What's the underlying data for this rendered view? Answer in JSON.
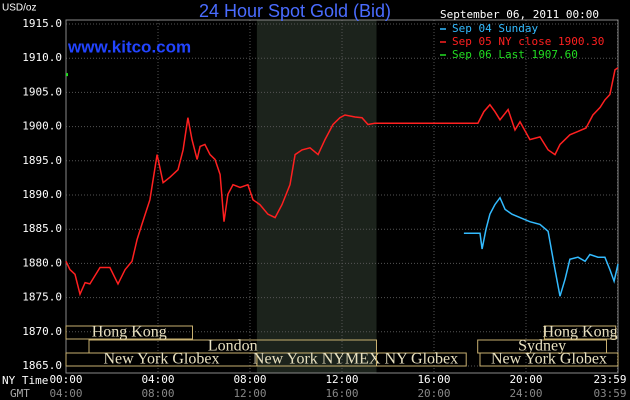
{
  "chart_data": {
    "type": "line",
    "title": "24 Hour Spot Gold (Bid)",
    "subtitle": "September 06, 2011 00:00",
    "y_label": "USD/oz",
    "watermark": "www.kitco.com",
    "x_row_labels": [
      "NY Time",
      "GMT"
    ],
    "xlim": [
      0,
      24
    ],
    "ylim": [
      1865,
      1915
    ],
    "xticks": [
      {
        "value": 0,
        "label": "00:00"
      },
      {
        "value": 4,
        "label": "04:00"
      },
      {
        "value": 8,
        "label": "08:00"
      },
      {
        "value": 12,
        "label": "12:00"
      },
      {
        "value": 16,
        "label": "16:00"
      },
      {
        "value": 20,
        "label": "20:00"
      },
      {
        "value": 23.98,
        "label": "23:59"
      }
    ],
    "gmt_labels": [
      "04:00",
      "08:00",
      "12:00",
      "16:00",
      "20:00",
      "24:00",
      "03:59"
    ],
    "yticks": [
      {
        "value": 1865,
        "label": "1865.0"
      },
      {
        "value": 1870,
        "label": "1870.0"
      },
      {
        "value": 1875,
        "label": "1875.0"
      },
      {
        "value": 1880,
        "label": "1880.0"
      },
      {
        "value": 1885,
        "label": "1885.0"
      },
      {
        "value": 1890,
        "label": "1890.0"
      },
      {
        "value": 1895,
        "label": "1895.0"
      },
      {
        "value": 1900,
        "label": "1900.0"
      },
      {
        "value": 1905,
        "label": "1905.0"
      },
      {
        "value": 1910,
        "label": "1910.0"
      },
      {
        "value": 1915,
        "label": "1915.0"
      }
    ],
    "grid": true,
    "series": [
      {
        "name": "Sep 04 Sunday",
        "color": "#33bbff",
        "x": [
          17.3,
          18.0,
          18.09,
          18.26,
          18.43,
          18.65,
          18.87,
          19.09,
          19.39,
          19.74,
          20.17,
          20.61,
          20.96,
          21.26,
          21.48,
          21.7,
          21.91,
          22.26,
          22.57,
          22.78,
          23.13,
          23.43,
          23.65,
          23.83,
          24.0
        ],
        "values": [
          1884.4,
          1884.4,
          1882.1,
          1885.0,
          1887.2,
          1888.6,
          1889.6,
          1887.9,
          1887.2,
          1886.7,
          1886.1,
          1885.7,
          1884.7,
          1879.1,
          1875.2,
          1877.7,
          1880.6,
          1880.9,
          1880.3,
          1881.3,
          1880.9,
          1880.9,
          1879.1,
          1877.4,
          1879.9
        ]
      },
      {
        "name": "Sep 05 NY close 1900.30",
        "color": "#ff2020",
        "x": [
          0.0,
          0.17,
          0.39,
          0.61,
          0.83,
          1.04,
          1.48,
          1.91,
          2.26,
          2.57,
          2.87,
          3.09,
          3.3,
          3.65,
          3.96,
          4.22,
          4.52,
          4.87,
          5.09,
          5.3,
          5.48,
          5.7,
          5.83,
          6.04,
          6.26,
          6.48,
          6.7,
          6.87,
          7.04,
          7.26,
          7.57,
          7.91,
          8.13,
          8.43,
          8.78,
          9.09,
          9.39,
          9.74,
          9.96,
          10.26,
          10.61,
          10.96,
          11.26,
          11.61,
          11.91,
          12.13,
          12.57,
          12.87,
          13.13,
          13.43,
          17.91,
          18.17,
          18.43,
          18.65,
          18.87,
          19.22,
          19.52,
          19.74,
          20.17,
          20.61,
          20.96,
          21.26,
          21.48,
          21.91,
          22.26,
          22.61,
          22.91,
          23.22,
          23.43,
          23.65,
          23.87,
          24.0
        ],
        "values": [
          1880.3,
          1879.1,
          1878.4,
          1875.5,
          1877.2,
          1877.0,
          1879.4,
          1879.4,
          1877.0,
          1879.1,
          1880.3,
          1883.5,
          1885.7,
          1889.3,
          1895.9,
          1891.8,
          1892.6,
          1893.7,
          1896.6,
          1901.3,
          1898.1,
          1895.2,
          1897.1,
          1897.4,
          1895.9,
          1895.2,
          1893.0,
          1886.1,
          1890.1,
          1891.5,
          1891.1,
          1891.5,
          1889.3,
          1888.6,
          1887.2,
          1886.7,
          1888.6,
          1891.5,
          1895.9,
          1896.6,
          1896.9,
          1895.9,
          1898.1,
          1900.3,
          1901.3,
          1901.7,
          1901.4,
          1901.3,
          1900.3,
          1900.5,
          1900.5,
          1902.2,
          1903.2,
          1902.2,
          1901.0,
          1902.5,
          1899.5,
          1900.7,
          1898.1,
          1898.5,
          1896.6,
          1895.9,
          1897.4,
          1898.8,
          1899.3,
          1899.8,
          1901.7,
          1902.8,
          1903.9,
          1904.7,
          1908.3,
          1908.6
        ]
      },
      {
        "name": "Sep 06 Last 1907.60",
        "color": "#22dd22",
        "x": [
          0.0
        ],
        "values": [
          1907.6
        ]
      }
    ],
    "sessions": [
      [
        {
          "label": "Hong Kong",
          "start": 0,
          "end": 5.5
        },
        {
          "label": "Hong Kong",
          "start": 20.8,
          "end": 23.9
        }
      ],
      [
        {
          "label": "London",
          "start": 1,
          "end": 13.5
        },
        {
          "label": "Sydney",
          "start": 17.9,
          "end": 23.5
        }
      ],
      [
        {
          "label": "New York Globex",
          "start": 0,
          "end": 8.3
        },
        {
          "label": "New York NYMEX",
          "start": 8.3,
          "end": 13.5,
          "highlight": true
        },
        {
          "label": "NY Globex",
          "start": 13.5,
          "end": 17.4
        },
        {
          "label": "New York Globex",
          "start": 18.0,
          "end": 24
        }
      ]
    ]
  }
}
